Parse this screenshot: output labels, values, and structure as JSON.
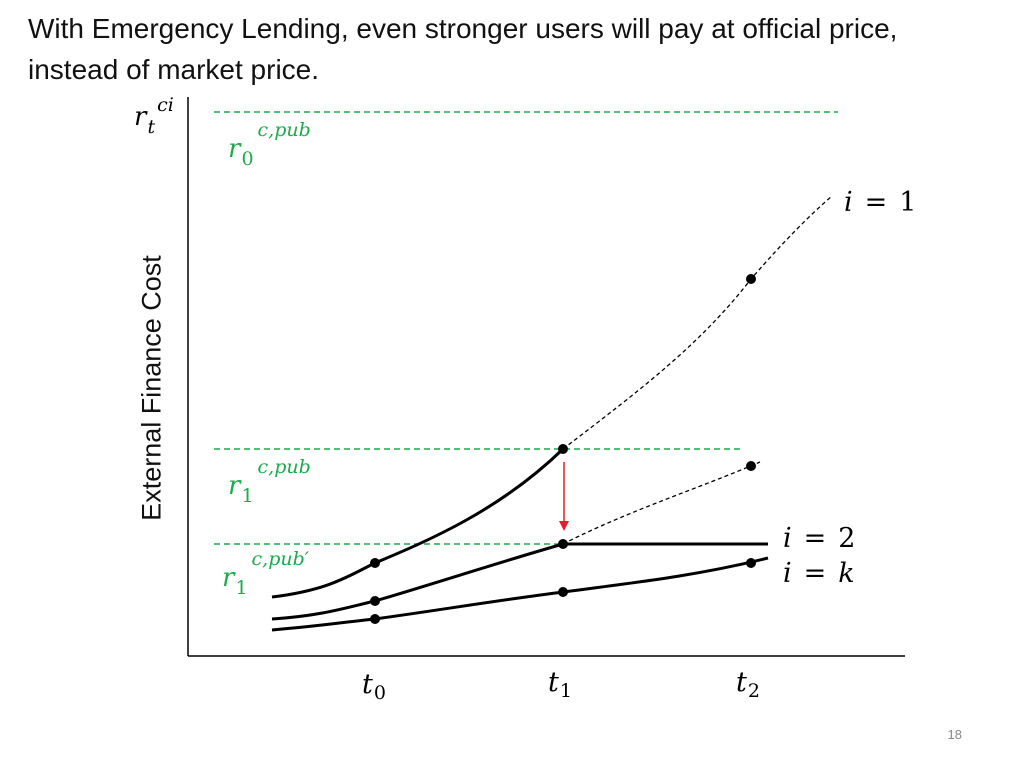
{
  "slide": {
    "title": "With Emergency Lending, even stronger users will pay at official price, instead of market price.",
    "page_number": "18"
  },
  "diagram": {
    "y_axis": {
      "label": "External Finance Cost",
      "symbol_base": "r",
      "symbol_sub": "t",
      "symbol_sup": "ci"
    },
    "x_ticks": [
      {
        "base": "t",
        "sub": "0"
      },
      {
        "base": "t",
        "sub": "1"
      },
      {
        "base": "t",
        "sub": "2"
      }
    ],
    "rate_levels": [
      {
        "base": "r",
        "sub": "0",
        "sup": "c,pub"
      },
      {
        "base": "r",
        "sub": "1",
        "sup": "c,pub"
      },
      {
        "base": "r",
        "sub": "1",
        "sup": "c,pub′"
      }
    ],
    "curves": [
      {
        "label_var": "i",
        "label_eq": "=",
        "label_val": "1"
      },
      {
        "label_var": "i",
        "label_eq": "=",
        "label_val": "2"
      },
      {
        "label_var": "i",
        "label_eq": "=",
        "label_val": "k"
      }
    ],
    "colors": {
      "rate_level": "#1aab4a",
      "arrow": "#e0202a",
      "curve": "#000000"
    }
  }
}
